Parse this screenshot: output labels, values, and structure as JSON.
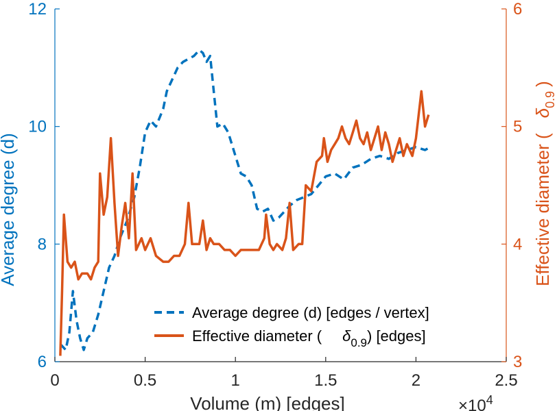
{
  "chart_data": {
    "type": "line",
    "xlabel": "Volume (m) [edges]",
    "x_exponent": "×10",
    "x_exponent_power": "4",
    "xlim": [
      0,
      2.5
    ],
    "xticks": [
      0,
      0.5,
      1,
      1.5,
      2,
      2.5
    ],
    "xtick_labels": [
      "0",
      "0.5",
      "1",
      "1.5",
      "2",
      "2.5"
    ],
    "y_left": {
      "label": "Average degree (d)",
      "lim": [
        6,
        12
      ],
      "ticks": [
        6,
        8,
        10,
        12
      ],
      "tick_labels": [
        "6",
        "8",
        "10",
        "12"
      ],
      "color": "#0072BD"
    },
    "y_right": {
      "label": "Effective diameter (δ₀.₉)",
      "label_main": "Effective diameter (",
      "label_delta": "δ",
      "label_sub": "0.9",
      "label_close": ")",
      "lim": [
        3,
        6
      ],
      "ticks": [
        3,
        4,
        5,
        6
      ],
      "tick_labels": [
        "3",
        "4",
        "5",
        "6"
      ],
      "color": "#D95319"
    },
    "grid": false,
    "legend_placement": "bottom-center",
    "series": [
      {
        "name": "Average degree (d) [edges / vertex]",
        "axis": "left",
        "style": "dashed",
        "color": "#0072BD",
        "points": [
          [
            0.03,
            6.3
          ],
          [
            0.06,
            6.2
          ],
          [
            0.08,
            6.5
          ],
          [
            0.1,
            7.2
          ],
          [
            0.12,
            6.7
          ],
          [
            0.14,
            6.4
          ],
          [
            0.16,
            6.2
          ],
          [
            0.18,
            6.4
          ],
          [
            0.21,
            6.5
          ],
          [
            0.24,
            6.8
          ],
          [
            0.27,
            7.2
          ],
          [
            0.3,
            7.6
          ],
          [
            0.33,
            7.8
          ],
          [
            0.36,
            8.1
          ],
          [
            0.4,
            8.4
          ],
          [
            0.44,
            8.8
          ],
          [
            0.47,
            9.3
          ],
          [
            0.5,
            9.9
          ],
          [
            0.53,
            10.1
          ],
          [
            0.56,
            10.0
          ],
          [
            0.6,
            10.3
          ],
          [
            0.62,
            10.6
          ],
          [
            0.65,
            10.8
          ],
          [
            0.68,
            11.0
          ],
          [
            0.71,
            11.1
          ],
          [
            0.74,
            11.15
          ],
          [
            0.77,
            11.2
          ],
          [
            0.8,
            11.3
          ],
          [
            0.82,
            11.25
          ],
          [
            0.84,
            11.1
          ],
          [
            0.86,
            11.2
          ],
          [
            0.88,
            10.6
          ],
          [
            0.9,
            10.0
          ],
          [
            0.93,
            10.05
          ],
          [
            0.96,
            9.9
          ],
          [
            1.0,
            9.5
          ],
          [
            1.03,
            9.2
          ],
          [
            1.06,
            9.15
          ],
          [
            1.09,
            9.0
          ],
          [
            1.12,
            8.6
          ],
          [
            1.15,
            8.55
          ],
          [
            1.18,
            8.6
          ],
          [
            1.21,
            8.4
          ],
          [
            1.24,
            8.45
          ],
          [
            1.27,
            8.55
          ],
          [
            1.3,
            8.65
          ],
          [
            1.34,
            8.75
          ],
          [
            1.38,
            8.8
          ],
          [
            1.42,
            8.85
          ],
          [
            1.46,
            9.0
          ],
          [
            1.5,
            9.15
          ],
          [
            1.55,
            9.2
          ],
          [
            1.6,
            9.1
          ],
          [
            1.65,
            9.3
          ],
          [
            1.7,
            9.35
          ],
          [
            1.75,
            9.45
          ],
          [
            1.8,
            9.5
          ],
          [
            1.85,
            9.45
          ],
          [
            1.9,
            9.55
          ],
          [
            1.95,
            9.6
          ],
          [
            2.0,
            9.65
          ],
          [
            2.05,
            9.6
          ],
          [
            2.08,
            9.65
          ]
        ]
      },
      {
        "name": "Effective diameter (δ₀.₉) [edges]",
        "legend_main": "Effective diameter (",
        "legend_delta": "δ",
        "legend_sub": "0.9",
        "legend_close": ") [edges]",
        "axis": "right",
        "style": "solid",
        "color": "#D95319",
        "points": [
          [
            0.03,
            3.05
          ],
          [
            0.04,
            3.6
          ],
          [
            0.05,
            4.25
          ],
          [
            0.07,
            3.85
          ],
          [
            0.09,
            3.8
          ],
          [
            0.11,
            3.85
          ],
          [
            0.13,
            3.7
          ],
          [
            0.15,
            3.75
          ],
          [
            0.18,
            3.75
          ],
          [
            0.2,
            3.7
          ],
          [
            0.22,
            3.8
          ],
          [
            0.24,
            3.85
          ],
          [
            0.25,
            4.6
          ],
          [
            0.27,
            4.25
          ],
          [
            0.29,
            4.4
          ],
          [
            0.31,
            4.9
          ],
          [
            0.33,
            4.35
          ],
          [
            0.35,
            3.9
          ],
          [
            0.37,
            4.15
          ],
          [
            0.39,
            4.35
          ],
          [
            0.41,
            4.05
          ],
          [
            0.43,
            4.6
          ],
          [
            0.45,
            3.95
          ],
          [
            0.48,
            4.05
          ],
          [
            0.5,
            3.95
          ],
          [
            0.53,
            4.05
          ],
          [
            0.56,
            3.9
          ],
          [
            0.6,
            3.85
          ],
          [
            0.63,
            3.85
          ],
          [
            0.66,
            3.9
          ],
          [
            0.69,
            3.9
          ],
          [
            0.72,
            4.0
          ],
          [
            0.74,
            4.35
          ],
          [
            0.76,
            4.0
          ],
          [
            0.8,
            4.0
          ],
          [
            0.82,
            4.2
          ],
          [
            0.84,
            3.95
          ],
          [
            0.86,
            4.05
          ],
          [
            0.88,
            4.0
          ],
          [
            0.91,
            4.0
          ],
          [
            0.94,
            3.95
          ],
          [
            0.97,
            3.95
          ],
          [
            1.0,
            3.9
          ],
          [
            1.03,
            3.95
          ],
          [
            1.07,
            3.95
          ],
          [
            1.1,
            3.95
          ],
          [
            1.13,
            3.95
          ],
          [
            1.16,
            4.05
          ],
          [
            1.17,
            4.25
          ],
          [
            1.19,
            4.0
          ],
          [
            1.21,
            3.95
          ],
          [
            1.23,
            4.0
          ],
          [
            1.26,
            3.95
          ],
          [
            1.28,
            4.05
          ],
          [
            1.3,
            4.35
          ],
          [
            1.32,
            3.95
          ],
          [
            1.35,
            4.0
          ],
          [
            1.37,
            4.0
          ],
          [
            1.39,
            4.5
          ],
          [
            1.42,
            4.45
          ],
          [
            1.45,
            4.7
          ],
          [
            1.48,
            4.75
          ],
          [
            1.49,
            4.9
          ],
          [
            1.51,
            4.7
          ],
          [
            1.53,
            4.8
          ],
          [
            1.55,
            4.85
          ],
          [
            1.57,
            4.9
          ],
          [
            1.59,
            5.0
          ],
          [
            1.61,
            4.9
          ],
          [
            1.63,
            4.85
          ],
          [
            1.65,
            4.95
          ],
          [
            1.67,
            5.05
          ],
          [
            1.69,
            4.9
          ],
          [
            1.71,
            4.85
          ],
          [
            1.73,
            4.95
          ],
          [
            1.75,
            4.8
          ],
          [
            1.77,
            4.9
          ],
          [
            1.79,
            5.0
          ],
          [
            1.81,
            4.8
          ],
          [
            1.83,
            4.95
          ],
          [
            1.85,
            4.85
          ],
          [
            1.87,
            4.7
          ],
          [
            1.89,
            4.8
          ],
          [
            1.91,
            4.9
          ],
          [
            1.93,
            4.75
          ],
          [
            1.95,
            4.85
          ],
          [
            1.98,
            4.75
          ],
          [
            2.0,
            4.9
          ],
          [
            2.03,
            5.3
          ],
          [
            2.05,
            5.0
          ],
          [
            2.07,
            5.1
          ]
        ]
      }
    ]
  }
}
